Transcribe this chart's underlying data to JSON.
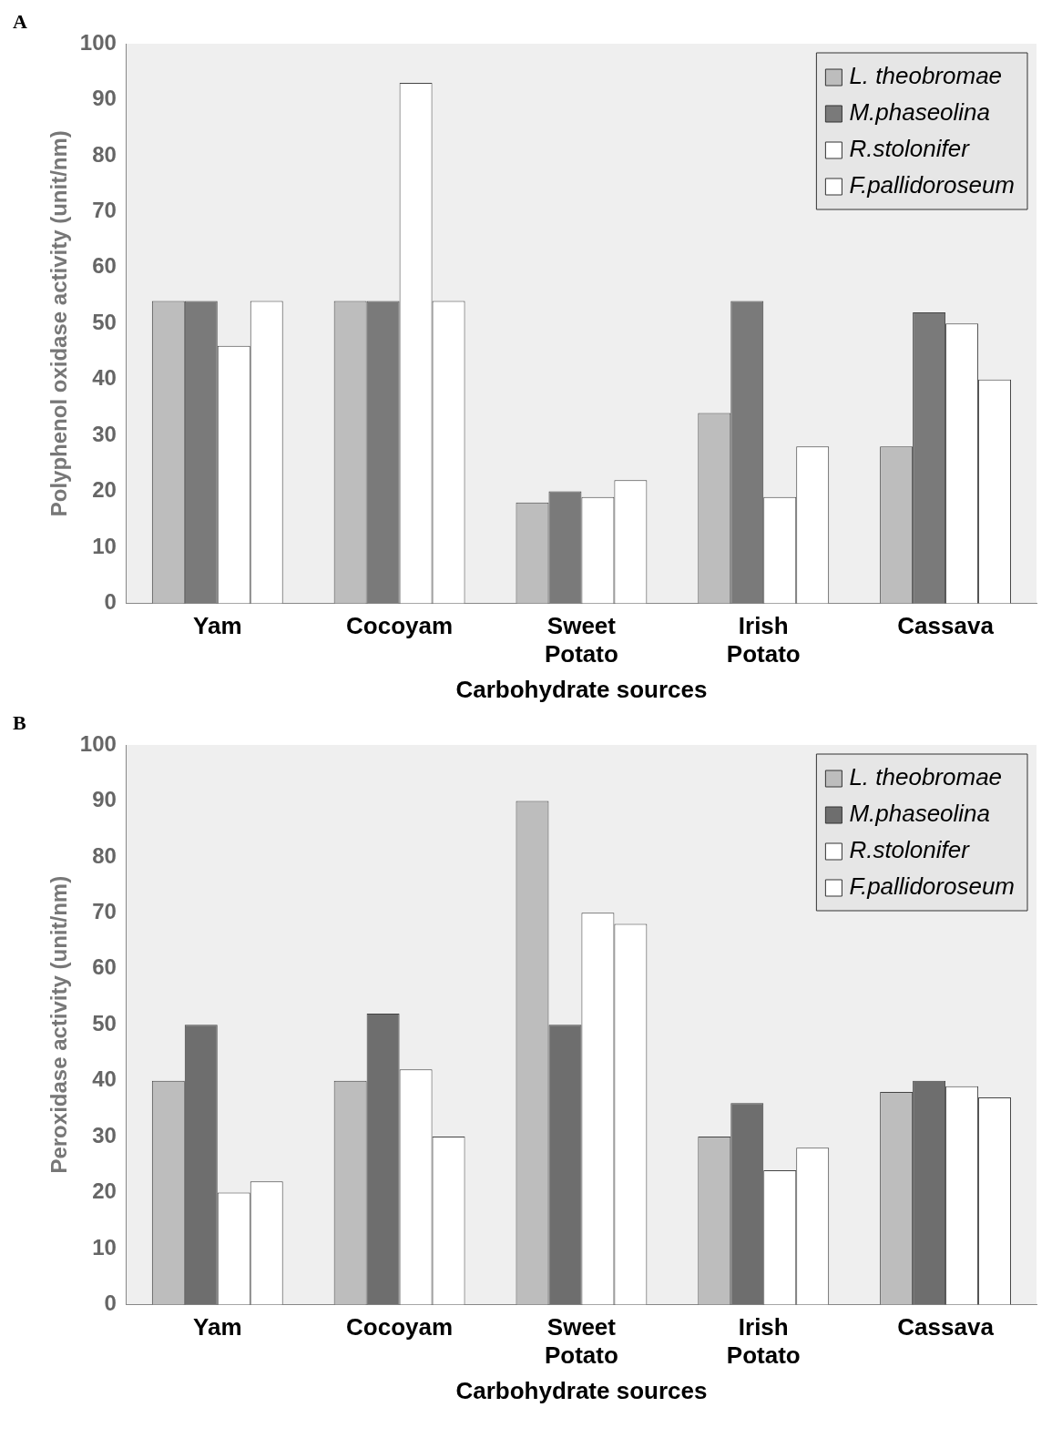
{
  "chart_data": [
    {
      "type": "bar",
      "annotations": [
        "A"
      ],
      "xlabel": "Carbohydrate sources",
      "ylabel": "Polyphenol oxidase activity (unit/nm)",
      "categories": [
        "Yam",
        "Cocoyam",
        "Sweet Potato",
        "Irish Potato",
        "Cassava"
      ],
      "series": [
        {
          "name": "L. theobromae",
          "color": "#bdbdbd",
          "values": [
            54,
            54,
            18,
            34,
            28
          ]
        },
        {
          "name": "M.phaseolina",
          "color": "#7a7a7a",
          "values": [
            54,
            54,
            20,
            54,
            52
          ]
        },
        {
          "name": "R.stolonifer",
          "color": "#ffffff",
          "values": [
            46,
            93,
            19,
            19,
            50
          ]
        },
        {
          "name": "F.pallidoroseum",
          "color": "#ffffff",
          "values": [
            54,
            54,
            22,
            28,
            40
          ]
        }
      ],
      "ylim": [
        0,
        100
      ],
      "yticks": [
        0,
        10,
        20,
        30,
        40,
        50,
        60,
        70,
        80,
        90,
        100
      ],
      "grid": false,
      "legend": "top right"
    },
    {
      "type": "bar",
      "annotations": [
        "B"
      ],
      "xlabel": "Carbohydrate sources",
      "ylabel": "Peroxidase activity (unit/nm)",
      "categories": [
        "Yam",
        "Cocoyam",
        "Sweet Potato",
        "Irish Potato",
        "Cassava"
      ],
      "series": [
        {
          "name": "L. theobromae",
          "color": "#bdbdbd",
          "values": [
            40,
            40,
            90,
            30,
            38
          ]
        },
        {
          "name": "M.phaseolina",
          "color": "#6e6e6e",
          "values": [
            50,
            52,
            50,
            36,
            40
          ]
        },
        {
          "name": "R.stolonifer",
          "color": "#ffffff",
          "values": [
            20,
            42,
            70,
            24,
            39
          ]
        },
        {
          "name": "F.pallidoroseum",
          "color": "#ffffff",
          "values": [
            22,
            30,
            68,
            28,
            37
          ]
        }
      ],
      "ylim": [
        0,
        100
      ],
      "yticks": [
        0,
        10,
        20,
        30,
        40,
        50,
        60,
        70,
        80,
        90,
        100
      ],
      "grid": false,
      "legend": "top right"
    }
  ]
}
